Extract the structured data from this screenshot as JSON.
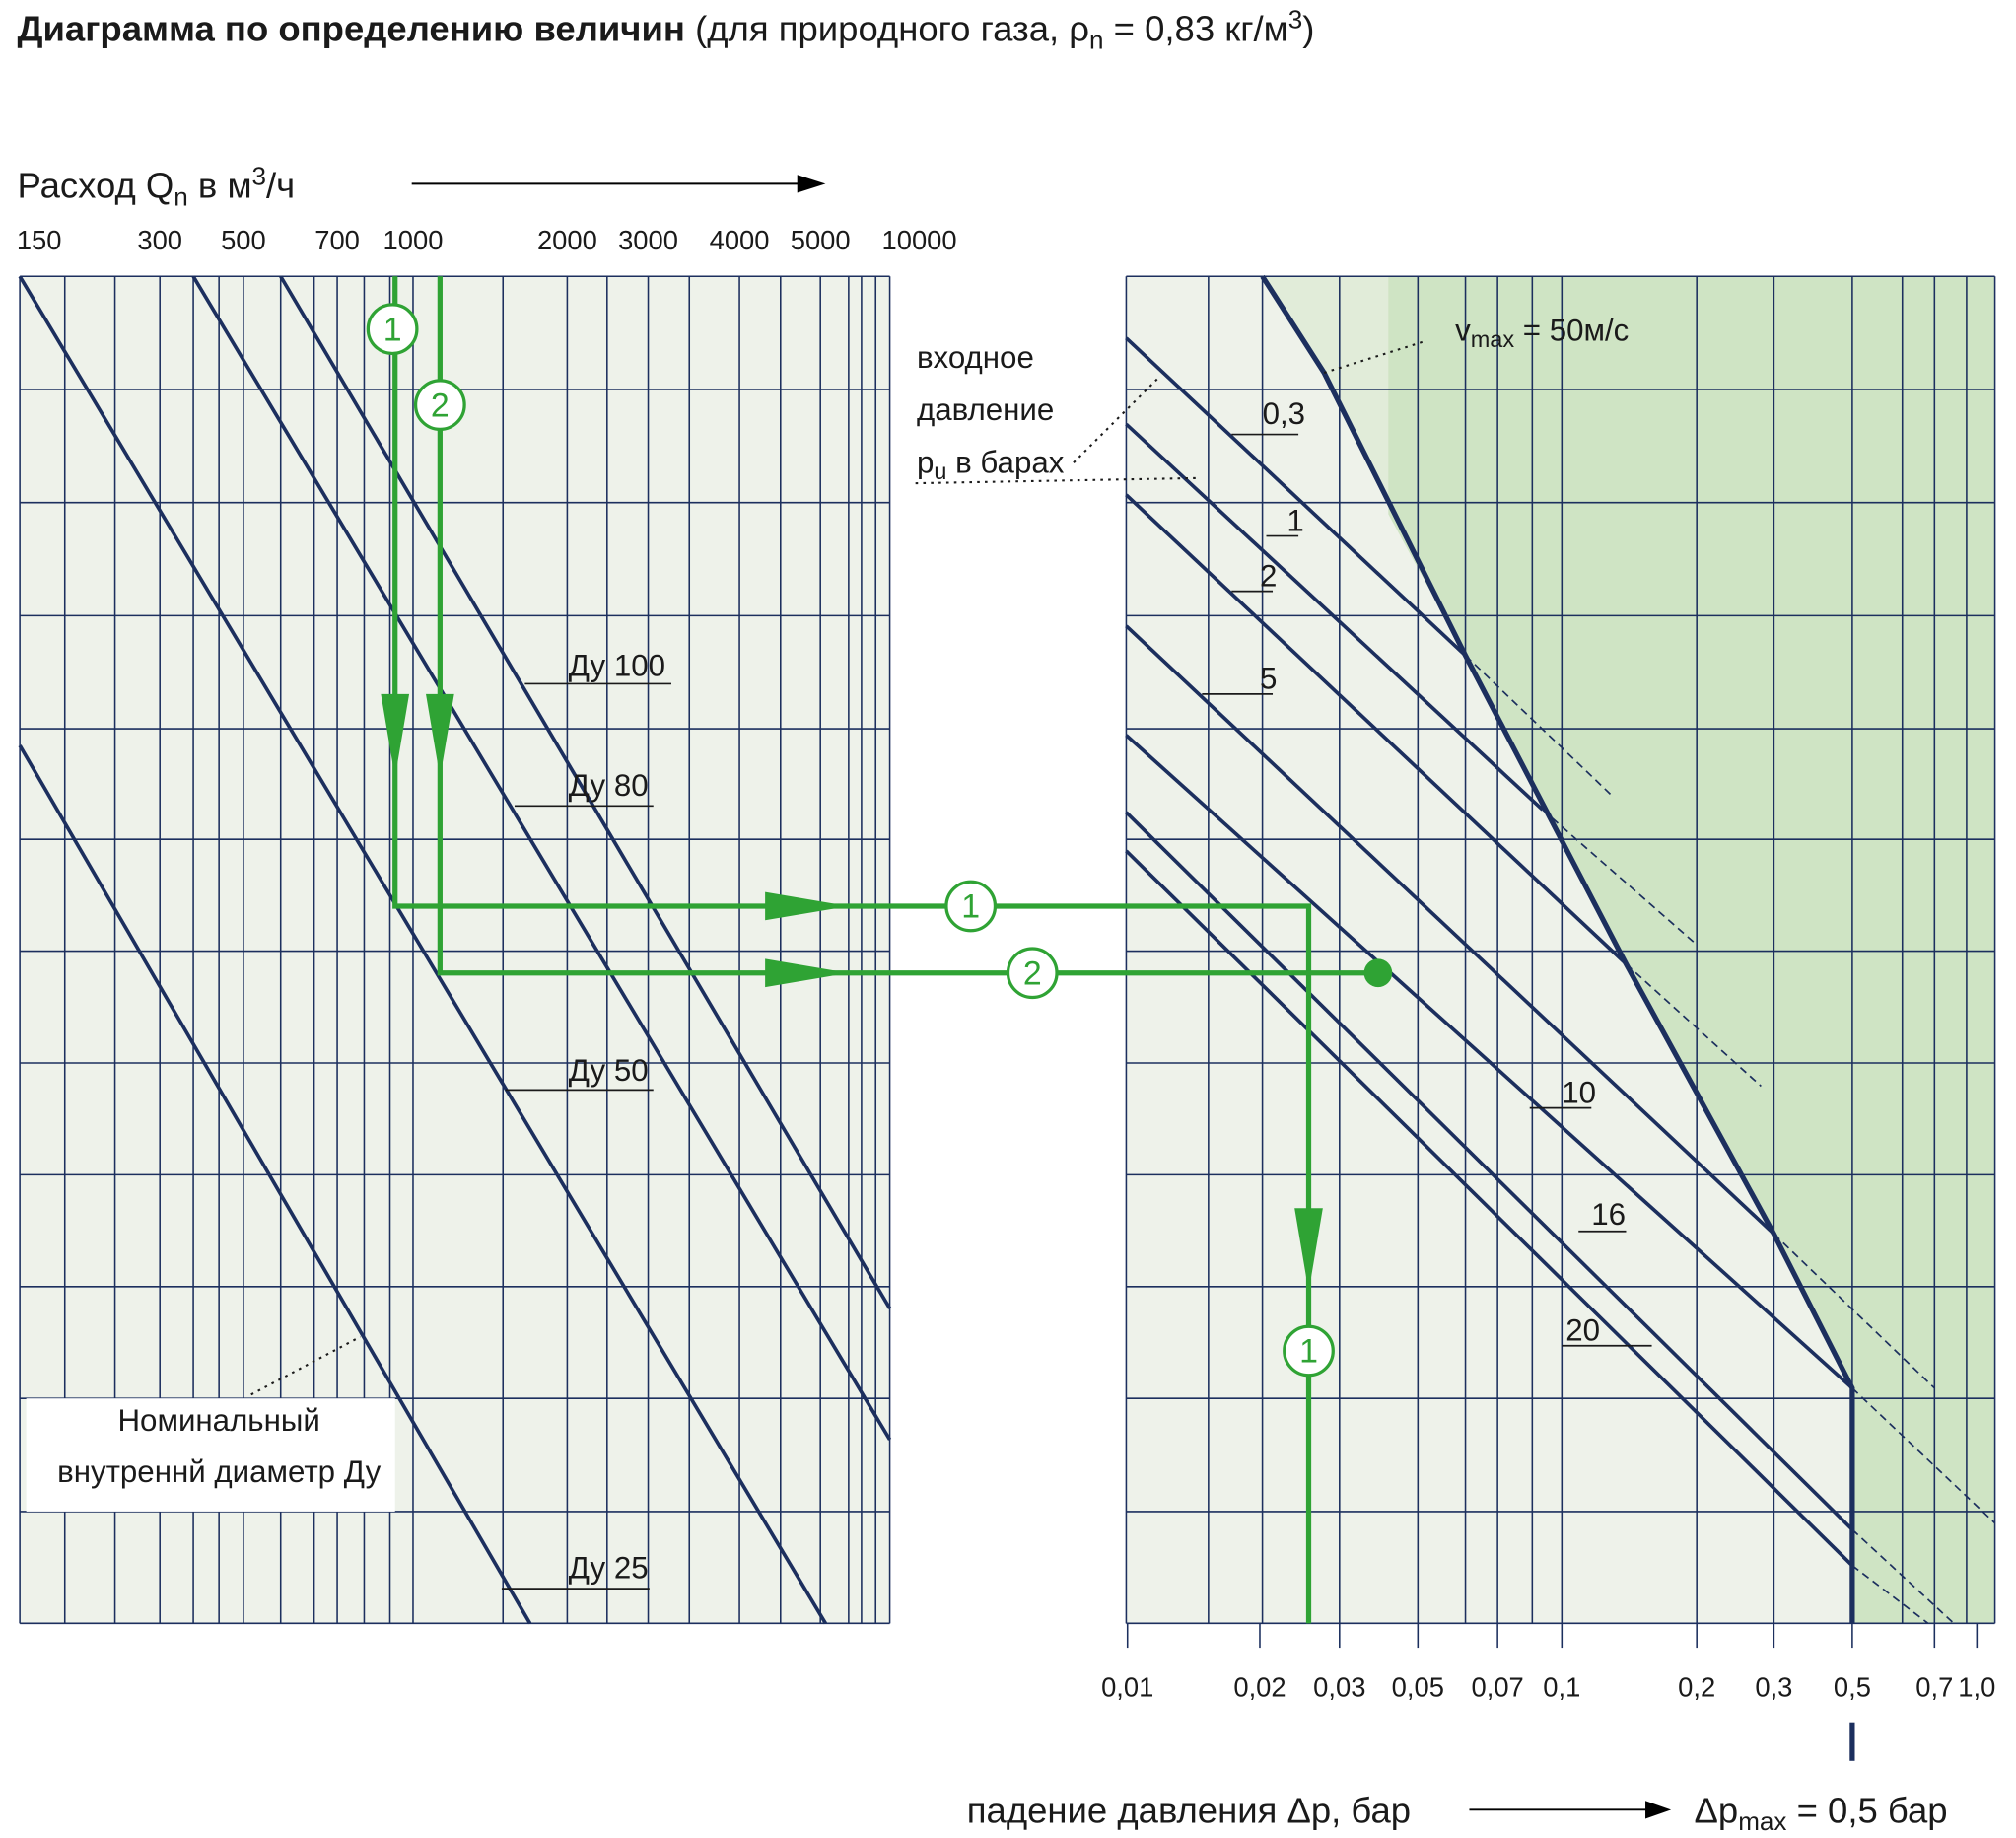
{
  "title": {
    "bold": "Диаграмма по определению величин",
    "note": [
      "(для природного газа, ρ",
      "n",
      " = 0,83 кг/м",
      "3",
      ")"
    ]
  },
  "flow_axis": {
    "label": [
      "Расход Q",
      "n",
      " в м",
      "3",
      "/ч"
    ],
    "ticks": [
      "150",
      "300",
      "500",
      "700",
      "1000",
      "2000",
      "3000",
      "4000",
      "5000",
      "10000"
    ]
  },
  "diameters": [
    "Ду 100",
    "Ду 80",
    "Ду 50",
    "Ду 25"
  ],
  "nominal": [
    "Номинальный",
    "внутреннй диаметр Ду"
  ],
  "inlet": {
    "lines": [
      "входное",
      "давление"
    ],
    "last": [
      "p",
      "u",
      " в барах"
    ]
  },
  "vmax": [
    "v",
    "max",
    " = 50м/с"
  ],
  "pressures": [
    "0,3",
    "1",
    "2",
    "5",
    "10",
    "16",
    "20"
  ],
  "markers": [
    "1",
    "2",
    "1",
    "2",
    "1"
  ],
  "drop_axis": {
    "ticks": [
      "0,01",
      "0,02",
      "0,03",
      "0,05",
      "0,07",
      "0,1",
      "0,2",
      "0,3",
      "0,5",
      "0,7",
      "1,0"
    ],
    "label": "падение давления Δp, бар",
    "max": [
      "Δp",
      "max",
      " = 0,5 бар"
    ]
  }
}
